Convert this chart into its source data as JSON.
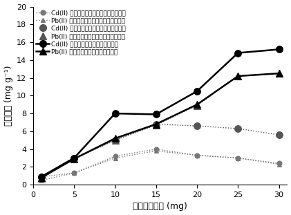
{
  "x": [
    1,
    5,
    10,
    15,
    20,
    25,
    30
  ],
  "series": [
    {
      "label": "Cd(II) 在戊二醉交联型磁性明胶上的吸附",
      "y": [
        0.9,
        1.3,
        3.2,
        4.0,
        3.3,
        3.0,
        2.4
      ],
      "color": "#777777",
      "linestyle": "dotted",
      "marker": "o",
      "linewidth": 1.0,
      "markersize": 5,
      "legend_linestyle": "dotted"
    },
    {
      "label": "Pb(II) 在戊二醉交联型磁性明胶上的吸附",
      "y": [
        0.5,
        1.3,
        3.0,
        3.8,
        3.3,
        3.0,
        2.3
      ],
      "color": "#777777",
      "linestyle": "dotted",
      "marker": "^",
      "linewidth": 1.0,
      "markersize": 5,
      "legend_linestyle": "dotted"
    },
    {
      "label": "Cd(II) 在京尼平交联型磁性明胶上的吸附",
      "y": [
        0.9,
        3.0,
        5.0,
        6.8,
        6.6,
        6.3,
        5.6
      ],
      "color": "#555555",
      "linestyle": "dotted",
      "marker": "o",
      "linewidth": 1.0,
      "markersize": 7,
      "legend_linestyle": "none"
    },
    {
      "label": "Pb(II) 在京尼平交联型磁性明胶上的吸附",
      "y": [
        0.7,
        2.9,
        5.0,
        6.7,
        8.9,
        12.2,
        12.5
      ],
      "color": "#555555",
      "linestyle": "dotted",
      "marker": "^",
      "linewidth": 1.0,
      "markersize": 7,
      "legend_linestyle": "none"
    },
    {
      "label": "Cd(II) 在酶交联型磁性明胶上的吸附",
      "y": [
        0.9,
        3.0,
        8.0,
        7.9,
        10.5,
        14.8,
        15.2
      ],
      "color": "#000000",
      "linestyle": "solid",
      "marker": "o",
      "linewidth": 1.8,
      "markersize": 7,
      "legend_linestyle": "solid"
    },
    {
      "label": "Pb(II) 在酶交联型磁性明胶上的吸附",
      "y": [
        0.8,
        2.9,
        5.2,
        6.8,
        9.0,
        12.2,
        12.5
      ],
      "color": "#000000",
      "linestyle": "solid",
      "marker": "^",
      "linewidth": 1.8,
      "markersize": 7,
      "legend_linestyle": "solid"
    }
  ],
  "xlabel": "交联剂的含量 (mg)",
  "ylabel": "吸附容量 (mg g⁻¹)",
  "ylim": [
    0,
    20
  ],
  "xlim": [
    0,
    31
  ],
  "yticks": [
    0,
    2,
    4,
    6,
    8,
    10,
    12,
    14,
    16,
    18,
    20
  ],
  "xticks": [
    0,
    5,
    10,
    15,
    20,
    25,
    30
  ],
  "legend_fontsize": 6.5,
  "axis_fontsize": 9,
  "tick_fontsize": 8,
  "background_color": "#ffffff"
}
